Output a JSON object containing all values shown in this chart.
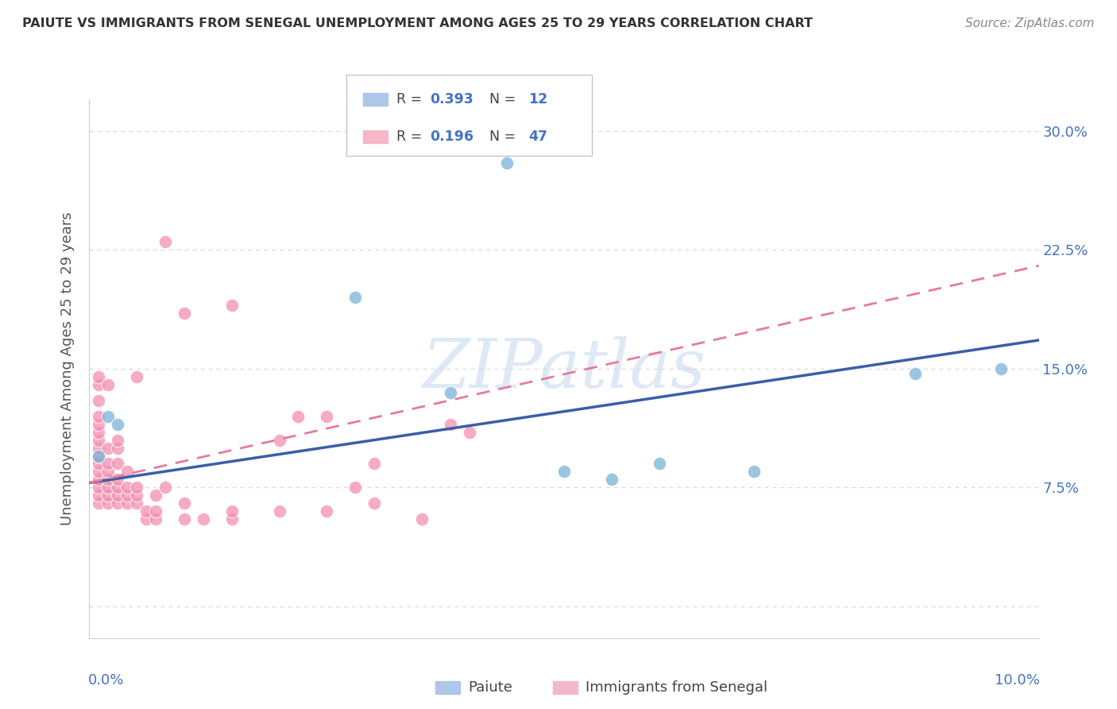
{
  "title": "PAIUTE VS IMMIGRANTS FROM SENEGAL UNEMPLOYMENT AMONG AGES 25 TO 29 YEARS CORRELATION CHART",
  "source": "Source: ZipAtlas.com",
  "ylabel": "Unemployment Among Ages 25 to 29 years",
  "ytick_values": [
    0.0,
    0.075,
    0.15,
    0.225,
    0.3
  ],
  "xlim": [
    0.0,
    0.1
  ],
  "ylim": [
    -0.02,
    0.32
  ],
  "watermark": "ZIPatlas",
  "paiute_color": "#7ab3d9",
  "senegal_color": "#f48fb1",
  "paiute_line_color": "#3a5ea8",
  "senegal_line_color": "#e87a9a",
  "paiute_x": [
    0.001,
    0.002,
    0.003,
    0.028,
    0.038,
    0.044,
    0.05,
    0.055,
    0.06,
    0.07,
    0.087,
    0.096
  ],
  "paiute_y": [
    0.095,
    0.12,
    0.115,
    0.195,
    0.135,
    0.28,
    0.085,
    0.08,
    0.09,
    0.085,
    0.147,
    0.15
  ],
  "senegal_x": [
    0.001,
    0.001,
    0.001,
    0.001,
    0.001,
    0.001,
    0.001,
    0.001,
    0.001,
    0.001,
    0.001,
    0.001,
    0.001,
    0.001,
    0.001,
    0.002,
    0.002,
    0.002,
    0.002,
    0.002,
    0.002,
    0.002,
    0.002,
    0.003,
    0.003,
    0.003,
    0.003,
    0.003,
    0.003,
    0.003,
    0.004,
    0.004,
    0.004,
    0.004,
    0.005,
    0.005,
    0.005,
    0.005,
    0.006,
    0.006,
    0.007,
    0.007,
    0.007,
    0.008,
    0.008,
    0.01,
    0.01,
    0.01,
    0.012,
    0.015,
    0.015,
    0.015,
    0.02,
    0.02,
    0.022,
    0.025,
    0.025,
    0.028,
    0.03,
    0.03,
    0.035,
    0.038,
    0.04
  ],
  "senegal_y": [
    0.065,
    0.07,
    0.075,
    0.08,
    0.085,
    0.09,
    0.095,
    0.1,
    0.105,
    0.11,
    0.115,
    0.12,
    0.13,
    0.14,
    0.145,
    0.065,
    0.07,
    0.075,
    0.08,
    0.085,
    0.09,
    0.1,
    0.14,
    0.065,
    0.07,
    0.075,
    0.08,
    0.09,
    0.1,
    0.105,
    0.065,
    0.07,
    0.075,
    0.085,
    0.065,
    0.07,
    0.075,
    0.145,
    0.055,
    0.06,
    0.055,
    0.06,
    0.07,
    0.075,
    0.23,
    0.055,
    0.065,
    0.185,
    0.055,
    0.055,
    0.06,
    0.19,
    0.06,
    0.105,
    0.12,
    0.06,
    0.12,
    0.075,
    0.065,
    0.09,
    0.055,
    0.115,
    0.11
  ],
  "paiute_trend_x": [
    0.0,
    0.1
  ],
  "paiute_trend_y": [
    0.078,
    0.168
  ],
  "senegal_trend_x": [
    0.0,
    0.1
  ],
  "senegal_trend_y": [
    0.078,
    0.215
  ],
  "grid_color": "#d8d8d8",
  "bg_color": "#ffffff",
  "legend_box_color": "#aec6e8",
  "legend_box_color2": "#f4b8c8",
  "axis_color": "#4472c4"
}
